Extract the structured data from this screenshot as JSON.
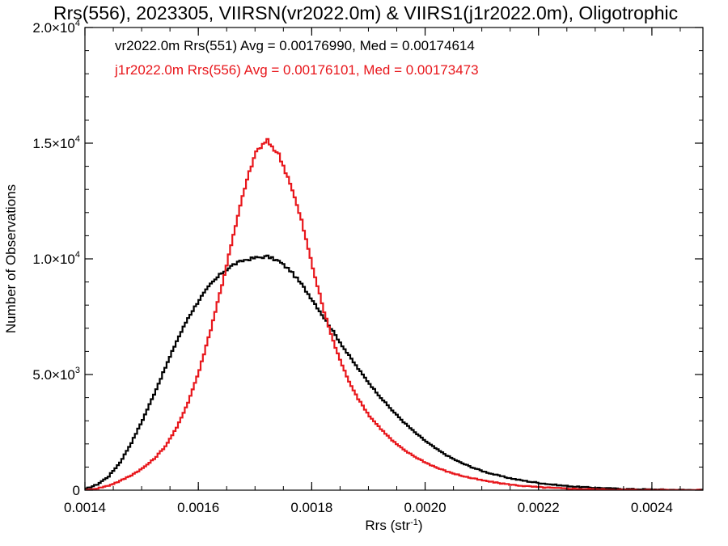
{
  "chart_data": {
    "type": "line",
    "title": "Rrs(556), 2023305, VIIRSN(vr2022.0m) & VIIRS1(j1r2022.0m), Oligotrophic",
    "xlabel": "Rrs (str",
    "xlabel_sup": "-1",
    "xlabel_suffix": ")",
    "ylabel": "Number of Observations",
    "xlim": [
      0.0014,
      0.00249
    ],
    "ylim": [
      0,
      20000
    ],
    "xticks": [
      0.0014,
      0.0016,
      0.0018,
      0.002,
      0.0022,
      0.0024
    ],
    "xtick_labels": [
      "0.0014",
      "0.0016",
      "0.0018",
      "0.0020",
      "0.0022",
      "0.0024"
    ],
    "yticks": [
      0,
      5000,
      10000,
      15000,
      20000
    ],
    "ytick_labels": [
      {
        "mant": "0",
        "sup": ""
      },
      {
        "mant": "5.0×10",
        "sup": "3"
      },
      {
        "mant": "1.0×10",
        "sup": "4"
      },
      {
        "mant": "1.5×10",
        "sup": "4"
      },
      {
        "mant": "2.0×10",
        "sup": "4"
      }
    ],
    "grid": false,
    "legend_position": "top-left",
    "series": [
      {
        "name": "vr2022.0m Rrs(551) Avg = 0.00176990, Med = 0.00174614",
        "color": "#000000",
        "points": [
          [
            0.0014,
            60
          ],
          [
            0.00142,
            250
          ],
          [
            0.00144,
            600
          ],
          [
            0.00146,
            1200
          ],
          [
            0.00148,
            2050
          ],
          [
            0.0015,
            3050
          ],
          [
            0.00152,
            4150
          ],
          [
            0.00154,
            5300
          ],
          [
            0.00156,
            6450
          ],
          [
            0.00158,
            7450
          ],
          [
            0.0016,
            8250
          ],
          [
            0.00162,
            8900
          ],
          [
            0.00164,
            9400
          ],
          [
            0.00166,
            9750
          ],
          [
            0.00168,
            9950
          ],
          [
            0.0017,
            10050
          ],
          [
            0.00172,
            10100
          ],
          [
            0.00174,
            9900
          ],
          [
            0.00176,
            9500
          ],
          [
            0.00178,
            8900
          ],
          [
            0.0018,
            8200
          ],
          [
            0.00182,
            7450
          ],
          [
            0.00184,
            6700
          ],
          [
            0.00186,
            5950
          ],
          [
            0.00188,
            5250
          ],
          [
            0.0019,
            4600
          ],
          [
            0.00192,
            4000
          ],
          [
            0.00194,
            3450
          ],
          [
            0.00196,
            2950
          ],
          [
            0.00198,
            2500
          ],
          [
            0.002,
            2100
          ],
          [
            0.00202,
            1750
          ],
          [
            0.00204,
            1450
          ],
          [
            0.00206,
            1200
          ],
          [
            0.00208,
            1000
          ],
          [
            0.0021,
            820
          ],
          [
            0.00212,
            680
          ],
          [
            0.00214,
            560
          ],
          [
            0.00216,
            460
          ],
          [
            0.00218,
            380
          ],
          [
            0.0022,
            310
          ],
          [
            0.00222,
            250
          ],
          [
            0.00224,
            200
          ],
          [
            0.00226,
            160
          ],
          [
            0.00228,
            125
          ],
          [
            0.0023,
            100
          ],
          [
            0.00232,
            80
          ],
          [
            0.00234,
            60
          ],
          [
            0.00236,
            48
          ],
          [
            0.00238,
            38
          ],
          [
            0.0024,
            30
          ],
          [
            0.00242,
            22
          ],
          [
            0.00244,
            16
          ],
          [
            0.00246,
            12
          ],
          [
            0.00248,
            8
          ]
        ]
      },
      {
        "name": "j1r2022.0m Rrs(556) Avg = 0.00176101, Med = 0.00173473",
        "color": "#e8161b",
        "points": [
          [
            0.0014,
            0
          ],
          [
            0.00142,
            80
          ],
          [
            0.00144,
            200
          ],
          [
            0.00146,
            400
          ],
          [
            0.00148,
            650
          ],
          [
            0.0015,
            950
          ],
          [
            0.00152,
            1350
          ],
          [
            0.00154,
            1900
          ],
          [
            0.00156,
            2700
          ],
          [
            0.00158,
            3800
          ],
          [
            0.0016,
            5200
          ],
          [
            0.00162,
            6950
          ],
          [
            0.00164,
            8900
          ],
          [
            0.00166,
            11000
          ],
          [
            0.00168,
            13100
          ],
          [
            0.0017,
            14650
          ],
          [
            0.00172,
            15100
          ],
          [
            0.00174,
            14500
          ],
          [
            0.00176,
            13300
          ],
          [
            0.00178,
            11650
          ],
          [
            0.0018,
            9600
          ],
          [
            0.00182,
            7700
          ],
          [
            0.00184,
            6150
          ],
          [
            0.00186,
            4900
          ],
          [
            0.00188,
            3950
          ],
          [
            0.0019,
            3200
          ],
          [
            0.00192,
            2650
          ],
          [
            0.00194,
            2150
          ],
          [
            0.00196,
            1750
          ],
          [
            0.00198,
            1450
          ],
          [
            0.002,
            1180
          ],
          [
            0.00202,
            960
          ],
          [
            0.00204,
            780
          ],
          [
            0.00206,
            640
          ],
          [
            0.00208,
            520
          ],
          [
            0.0021,
            420
          ],
          [
            0.00212,
            340
          ],
          [
            0.00214,
            270
          ],
          [
            0.00216,
            210
          ],
          [
            0.00218,
            165
          ],
          [
            0.0022,
            130
          ],
          [
            0.00222,
            100
          ],
          [
            0.00224,
            78
          ],
          [
            0.00226,
            60
          ],
          [
            0.00228,
            46
          ],
          [
            0.0023,
            35
          ],
          [
            0.00232,
            27
          ],
          [
            0.00234,
            20
          ],
          [
            0.00236,
            15
          ],
          [
            0.00238,
            11
          ],
          [
            0.0024,
            8
          ],
          [
            0.00242,
            6
          ],
          [
            0.00244,
            4
          ],
          [
            0.00246,
            3
          ],
          [
            0.00248,
            2
          ]
        ]
      }
    ]
  }
}
